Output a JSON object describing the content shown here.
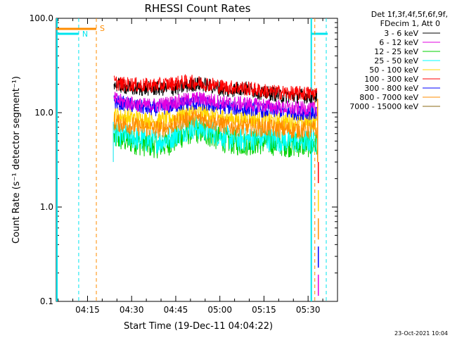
{
  "chart_data": {
    "type": "line",
    "title": "RHESSI Count Rates",
    "xlabel": "Start Time (19-Dec-11 04:04:22)",
    "ylabel": "Count Rate (s⁻¹ detector segment⁻¹)",
    "yscale": "log",
    "ylim": [
      0.1,
      100
    ],
    "xlim": [
      "04:04:22",
      "05:40"
    ],
    "x_ticks": [
      "04:15",
      "04:30",
      "04:45",
      "05:00",
      "05:15",
      "05:30"
    ],
    "y_ticks": [
      "0.1",
      "1.0",
      "10.0",
      "100.0"
    ],
    "legend": {
      "placement": "top-right outside",
      "header": [
        "Det 1f,3f,4f,5f,6f,9f,",
        "FDecim 1, Att 0"
      ]
    },
    "data_start": "04:24",
    "data_end": "05:33",
    "x_points": [
      "04:24",
      "04:27",
      "04:30",
      "04:33",
      "04:36",
      "04:39",
      "04:42",
      "04:45",
      "04:48",
      "04:51",
      "04:54",
      "04:57",
      "05:00",
      "05:03",
      "05:06",
      "05:09",
      "05:12",
      "05:15",
      "05:18",
      "05:21",
      "05:24",
      "05:27",
      "05:30",
      "05:33"
    ],
    "series": [
      {
        "name": "3 - 6 keV",
        "color": "#000000",
        "values": [
          20,
          19,
          18,
          18,
          18,
          18,
          18,
          18,
          19,
          20,
          20,
          19,
          18,
          17,
          18,
          18,
          17,
          16,
          16,
          15,
          15,
          15,
          15,
          15
        ]
      },
      {
        "name": "6 - 12 keV",
        "color": "#e000e0",
        "values": [
          14,
          13,
          12.5,
          12,
          12,
          12,
          12.5,
          13,
          13.5,
          14,
          14,
          13.5,
          13,
          12.5,
          12.5,
          12.5,
          12,
          12,
          11.5,
          11.5,
          11,
          11,
          11,
          11
        ]
      },
      {
        "name": "12 - 25 keV",
        "color": "#00d000",
        "values": [
          5.5,
          5.2,
          5,
          4.8,
          4.6,
          4.5,
          4.7,
          5.2,
          6,
          6.5,
          6.3,
          5.8,
          5.3,
          5,
          4.8,
          4.8,
          4.9,
          4.9,
          4.8,
          4.7,
          4.6,
          4.6,
          4.6,
          4.6
        ]
      },
      {
        "name": "25 - 50 keV",
        "color": "#00ffff",
        "values": [
          6,
          5.7,
          5.5,
          5.2,
          5,
          5,
          5.2,
          5.8,
          6.6,
          7,
          6.8,
          6.3,
          5.8,
          5.4,
          5.2,
          5.2,
          5.3,
          5.3,
          5.2,
          5.1,
          5,
          5,
          5,
          5
        ]
      },
      {
        "name": "50 - 100 keV",
        "color": "#ffd700",
        "values": [
          9.5,
          9,
          8.8,
          8.5,
          8.3,
          8.2,
          8.5,
          9,
          9.8,
          10.2,
          10,
          9.5,
          9,
          8.7,
          8.5,
          8.5,
          8.5,
          8.4,
          8.2,
          8,
          8,
          8,
          8,
          8
        ]
      },
      {
        "name": "100 - 300 keV",
        "color": "#ff0000",
        "values": [
          21,
          20,
          20,
          19.5,
          19.5,
          19.5,
          20,
          20.5,
          21,
          21,
          20.5,
          20,
          19,
          18.5,
          18.5,
          18,
          17.5,
          17,
          16.5,
          16.5,
          16,
          16,
          16,
          16
        ]
      },
      {
        "name": "300 - 800 keV",
        "color": "#0000ff",
        "values": [
          13,
          12.5,
          12,
          11.5,
          11,
          11,
          11.5,
          12,
          12.5,
          12.5,
          12.5,
          12,
          11.5,
          11.5,
          11,
          11,
          11,
          10.5,
          10.5,
          10.5,
          10,
          10,
          10,
          10
        ]
      },
      {
        "name": "800 - 7000 keV",
        "color": "#ff8c00",
        "values": [
          8,
          7.6,
          7.3,
          7,
          6.8,
          6.7,
          7,
          7.6,
          8.4,
          8.8,
          8.6,
          8.1,
          7.6,
          7.2,
          7,
          7,
          7,
          6.9,
          6.8,
          6.7,
          6.6,
          6.6,
          6.6,
          6.6
        ]
      },
      {
        "name": "7000 - 15000 keV",
        "color": "#8b6914",
        "values": []
      }
    ],
    "annotations": [
      {
        "label": "N",
        "color": "#00e5ee",
        "x": "04:12"
      },
      {
        "label": "S",
        "color": "#ff8c00",
        "x": "04:18"
      }
    ],
    "timestamp": "23-Oct-2021 10:04"
  }
}
